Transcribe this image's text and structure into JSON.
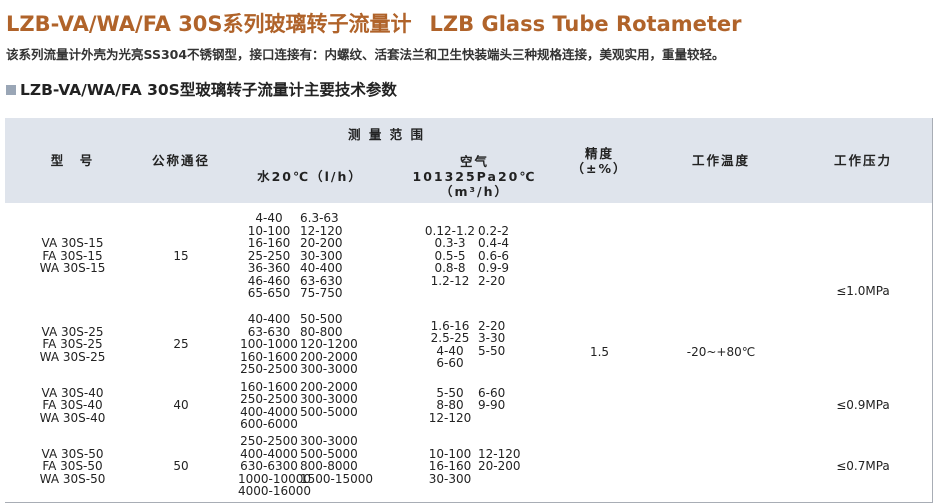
{
  "header": {
    "title_cn": "LZB-VA/WA/FA 30S系列玻璃转子流量计",
    "title_en": "LZB Glass Tube Rotameter",
    "intro": "该系列流量计外壳为光亮SS304不锈钢型，接口连接有：内螺纹、活套法兰和卫生快装端头三种规格连接，美观实用，重量较轻。",
    "section_title": "LZB-VA/WA/FA 30S型玻璃转子流量计主要技术参数"
  },
  "table": {
    "headers": {
      "model": "型　号",
      "dn": "公称通径",
      "range": "测 量 范 围",
      "water": "水20℃（l/h）",
      "air_name": "空气",
      "air_condition": "101325Pa20℃",
      "air_unit": "（m³/h）",
      "precision_name": "精度",
      "precision_unit": "（±%）",
      "temperature": "工作温度",
      "pressure": "工作压力"
    },
    "rows": [
      {
        "models": [
          "VA 30S-15",
          "FA 30S-15",
          "WA 30S-15"
        ],
        "dn": 15,
        "water": [
          [
            "4-40",
            "6.3-63"
          ],
          [
            "10-100",
            "12-120"
          ],
          [
            "16-160",
            "20-200"
          ],
          [
            "25-250",
            "30-300"
          ],
          [
            "36-360",
            "40-400"
          ],
          [
            "46-460",
            "63-630"
          ],
          [
            "65-650",
            "75-750"
          ]
        ],
        "air": [
          [
            "0.12-1.2",
            "0.2-2"
          ],
          [
            "0.3-3",
            "0.4-4"
          ],
          [
            "0.5-5",
            "0.6-6"
          ],
          [
            "0.8-8",
            "0.9-9"
          ],
          [
            "1.2-12",
            "2-20"
          ]
        ]
      },
      {
        "models": [
          "VA 30S-25",
          "FA 30S-25",
          "WA 30S-25"
        ],
        "dn": 25,
        "water": [
          [
            "40-400",
            "50-500"
          ],
          [
            "63-630",
            "80-800"
          ],
          [
            "100-1000",
            "120-1200"
          ],
          [
            "160-1600",
            "200-2000"
          ],
          [
            "250-2500",
            "300-3000"
          ]
        ],
        "air": [
          [
            "1.6-16",
            "2-20"
          ],
          [
            "2.5-25",
            "3-30"
          ],
          [
            "4-40",
            "5-50"
          ],
          [
            "6-60"
          ]
        ]
      },
      {
        "models": [
          "VA 30S-40",
          "FA 30S-40",
          "WA 30S-40"
        ],
        "dn": 40,
        "water": [
          [
            "160-1600",
            "200-2000"
          ],
          [
            "250-2500",
            "300-3000"
          ],
          [
            "400-4000",
            "500-5000"
          ],
          [
            "600-6000"
          ]
        ],
        "air": [
          [
            "5-50",
            "6-60"
          ],
          [
            "8-80",
            "9-90"
          ],
          [
            "12-120"
          ]
        ]
      },
      {
        "models": [
          "VA 30S-50",
          "FA 30S-50",
          "WA 30S-50"
        ],
        "dn": 50,
        "water": [
          [
            "250-2500",
            "300-3000"
          ],
          [
            "400-4000",
            "500-5000"
          ],
          [
            "630-6300",
            "800-8000"
          ],
          [
            "1000-10000",
            "1500-15000"
          ],
          [
            "4000-16000"
          ]
        ],
        "air": [
          [
            "10-100",
            "12-120"
          ],
          [
            "16-160",
            "20-200"
          ],
          [
            "30-300"
          ]
        ]
      }
    ],
    "precision": "1.5",
    "temperature": "-20~+80℃",
    "pressure": [
      "≤1.0MPa",
      "≤0.9MPa",
      "≤0.7MPa"
    ]
  }
}
